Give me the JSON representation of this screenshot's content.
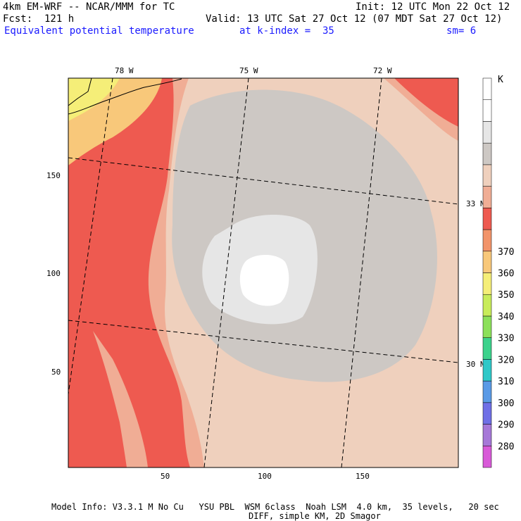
{
  "header": {
    "model_line": "4km EM-WRF -- NCAR/MMM for TC",
    "init_line": "Init: 12 UTC Mon 22 Oct 12",
    "fcst_line": "Fcst:  121 h",
    "valid_line": "Valid: 13 UTC Sat 27 Oct 12 (07 MDT Sat 27 Oct 12)",
    "field_name": "Equivalent potential temperature",
    "level_text": "at k-index =  35",
    "smooth_text": "sm= 6"
  },
  "map": {
    "top_lon_labels": [
      "78 W",
      "75 W",
      "72 W"
    ],
    "right_lat_labels": [
      "33 N",
      "30 N"
    ],
    "bottom_ticks": [
      "50",
      "100",
      "150"
    ],
    "left_ticks": [
      "150",
      "100",
      "50"
    ]
  },
  "colorbar": {
    "unit": "K",
    "levels": [
      "280",
      "290",
      "300",
      "310",
      "320",
      "330",
      "340",
      "350",
      "360",
      "370"
    ],
    "colors": [
      "#d85ad8",
      "#a678d8",
      "#6f6fe6",
      "#5a9ae6",
      "#2fc8c8",
      "#3cd28c",
      "#8ce05a",
      "#c8ec5a",
      "#f5ee78",
      "#f8c87a",
      "#f2946a",
      "#ee5a50",
      "#f0ad95",
      "#efd0bd",
      "#cdc8c4",
      "#e6e6e6",
      "#ffffff",
      "#ffffff"
    ]
  },
  "footer": {
    "line1": "Model Info: V3.3.1 M No Cu   YSU PBL  WSM 6class  Noah LSM  4.0 km,  35 levels,   20 sec",
    "line2": "DIFF, simple KM, 2D Smagor"
  }
}
